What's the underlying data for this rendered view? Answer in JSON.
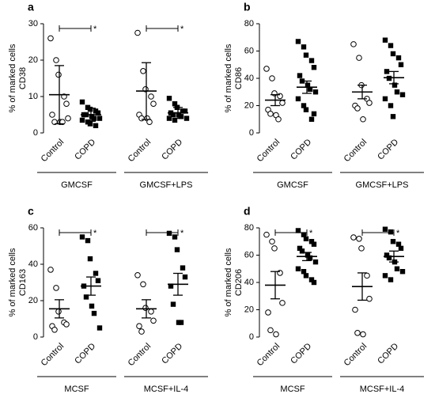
{
  "chart_data": [
    {
      "type": "dot",
      "panel_label": "a",
      "ylabel": "% of marked cells",
      "ylabel2": "CD38",
      "ylim": [
        0,
        30
      ],
      "yticks": [
        0,
        10,
        20,
        30
      ],
      "groups": [
        {
          "label": "GMCSF",
          "significance_label": "*",
          "subgroups": [
            {
              "name": "Control",
              "marker": "circle",
              "values": [
                26,
                20,
                16,
                10,
                8,
                5,
                3,
                3,
                3,
                4
              ],
              "mean": 10.5,
              "error": 8
            },
            {
              "name": "COPD",
              "marker": "square",
              "values": [
                8.5,
                7,
                6.5,
                6,
                5.5,
                5,
                5,
                4.5,
                4,
                4,
                3.5,
                3,
                2.5,
                2
              ],
              "mean": 5,
              "error": 1.8
            }
          ]
        },
        {
          "label": "GMCSF+LPS",
          "significance_label": "*",
          "subgroups": [
            {
              "name": "Control",
              "marker": "circle",
              "values": [
                27.5,
                17,
                12,
                10,
                8,
                5,
                4,
                4,
                3
              ],
              "mean": 11.5,
              "error": 7.8
            },
            {
              "name": "COPD",
              "marker": "square",
              "values": [
                9.5,
                8,
                7,
                6,
                6,
                5.5,
                5,
                5,
                4.5,
                4,
                4,
                3.5,
                7
              ],
              "mean": 5.5,
              "error": 1.5
            }
          ]
        }
      ]
    },
    {
      "type": "dot",
      "panel_label": "b",
      "ylabel": "% of marked cells",
      "ylabel2": "CD86",
      "ylim": [
        0,
        80
      ],
      "yticks": [
        0,
        20,
        40,
        60,
        80
      ],
      "groups": [
        {
          "label": "GMCSF",
          "subgroups": [
            {
              "name": "Control",
              "marker": "circle",
              "values": [
                47,
                40,
                29,
                27,
                22,
                17,
                14,
                13,
                10
              ],
              "mean": 24,
              "error": 4
            },
            {
              "name": "COPD",
              "marker": "square",
              "values": [
                67,
                63,
                57,
                53,
                48,
                42,
                38,
                35,
                32,
                30,
                25,
                20,
                17,
                10,
                14
              ],
              "mean": 33.5,
              "error": 4.5
            }
          ]
        },
        {
          "label": "GMCSF+LPS",
          "subgroups": [
            {
              "name": "Control",
              "marker": "circle",
              "values": [
                65,
                55,
                35,
                25,
                22,
                20,
                18,
                10
              ],
              "mean": 30,
              "error": 5
            },
            {
              "name": "COPD",
              "marker": "square",
              "values": [
                68,
                64,
                58,
                55,
                50,
                45,
                40,
                35,
                30,
                28,
                25,
                20,
                12
              ],
              "mean": 40.5,
              "error": 4.5
            }
          ]
        }
      ]
    },
    {
      "type": "dot",
      "panel_label": "c",
      "ylabel": "% of marked cells",
      "ylabel2": "CD163",
      "ylim": [
        0,
        60
      ],
      "yticks": [
        0,
        20,
        40,
        60
      ],
      "groups": [
        {
          "label": "MCSF",
          "significance_label": "*",
          "subgroups": [
            {
              "name": "Control",
              "marker": "circle",
              "values": [
                37,
                27,
                14,
                8,
                7,
                6,
                4
              ],
              "mean": 15.5,
              "error": 5
            },
            {
              "name": "COPD",
              "marker": "square",
              "values": [
                55,
                53,
                43,
                35,
                31,
                28,
                22,
                17,
                13,
                5
              ],
              "mean": 28,
              "error": 5
            }
          ]
        },
        {
          "label": "MCSF+IL-4",
          "significance_label": "*",
          "subgroups": [
            {
              "name": "Control",
              "marker": "circle",
              "values": [
                34,
                29,
                16,
                14,
                9,
                6,
                3
              ],
              "mean": 15.5,
              "error": 5
            },
            {
              "name": "COPD",
              "marker": "square",
              "values": [
                57,
                55,
                48,
                38,
                33,
                28,
                18,
                8,
                8
              ],
              "mean": 29,
              "error": 6
            }
          ]
        }
      ]
    },
    {
      "type": "dot",
      "panel_label": "d",
      "ylabel": "% of marked cells",
      "ylabel2": "CD206",
      "ylim": [
        0,
        80
      ],
      "yticks": [
        0,
        20,
        40,
        60,
        80
      ],
      "groups": [
        {
          "label": "MCSF",
          "significance_label": "*",
          "subgroups": [
            {
              "name": "Control",
              "marker": "circle",
              "values": [
                75,
                70,
                65,
                47,
                25,
                18,
                5,
                2
              ],
              "mean": 38,
              "error": 10
            },
            {
              "name": "COPD",
              "marker": "square",
              "values": [
                78,
                75,
                72,
                70,
                68,
                65,
                63,
                60,
                58,
                55,
                50,
                48,
                45,
                42,
                40
              ],
              "mean": 59,
              "error": 3
            }
          ]
        },
        {
          "label": "MCSF+IL-4",
          "significance_label": "*",
          "subgroups": [
            {
              "name": "Control",
              "marker": "circle",
              "values": [
                73,
                72,
                65,
                45,
                28,
                20,
                3,
                2
              ],
              "mean": 37,
              "error": 10
            },
            {
              "name": "COPD",
              "marker": "square",
              "values": [
                79,
                77,
                70,
                68,
                65,
                60,
                58,
                55,
                50,
                48,
                45,
                42
              ],
              "mean": 59,
              "error": 4
            }
          ]
        }
      ]
    }
  ]
}
